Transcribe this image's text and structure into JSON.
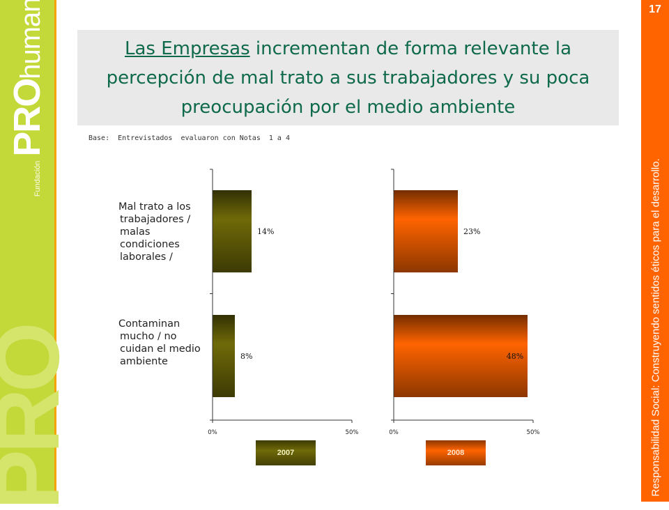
{
  "slide": {
    "page_number": "17",
    "title_underlined": "Las Empresas",
    "title_rest": " incrementan de forma relevante la percepción de mal trato a sus trabajadores y su poca preocupación por el medio ambiente",
    "base_note": "Base:  Entrevistados  evaluaron con Notas  1 a 4",
    "tagline": "Responsabilidad Social: Construyendo sentidos éticos para el desarrollo.",
    "logo": {
      "prefix": "Fundación",
      "pro": "PRO",
      "word": "humana",
      "reg": "®"
    }
  },
  "colors": {
    "green_bar": "#6f6a08",
    "orange_bar": "#ff6400",
    "left_strip": "#c3d93a",
    "right_strip": "#ff6400"
  },
  "chart_data": [
    {
      "type": "bar",
      "orientation": "horizontal",
      "legend": "2007",
      "categories": [
        "Mal trato a los trabajadores / malas condiciones laborales /",
        "Contaminan mucho / no cuidan el medio ambiente"
      ],
      "values": [
        14,
        8
      ],
      "value_labels": [
        "14%",
        "8%"
      ],
      "xlim": [
        0,
        50
      ],
      "tick_labels": [
        "0%",
        "50%"
      ],
      "color": "#6f6a08"
    },
    {
      "type": "bar",
      "orientation": "horizontal",
      "legend": "2008",
      "categories": [
        "Mal trato a los trabajadores / malas condiciones laborales /",
        "Contaminan mucho / no cuidan el medio ambiente"
      ],
      "values": [
        23,
        48
      ],
      "value_labels": [
        "23%",
        "48%"
      ],
      "xlim": [
        0,
        50
      ],
      "tick_labels": [
        "0%",
        "50%"
      ],
      "color": "#ff6400"
    }
  ]
}
